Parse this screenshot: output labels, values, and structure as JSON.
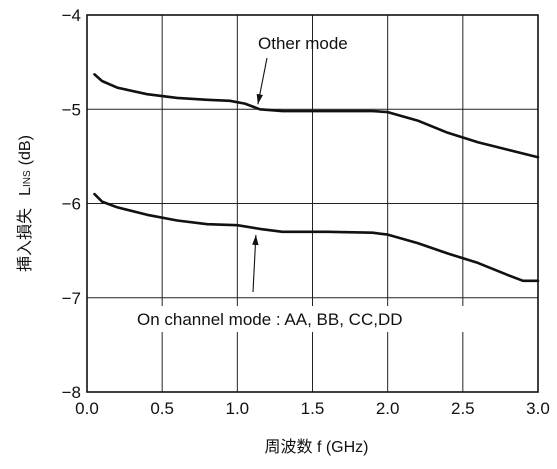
{
  "chart_data": {
    "type": "line",
    "title": "",
    "xlabel": "周波数  f (GHz)",
    "ylabel_main": "挿入損失",
    "ylabel_symbol": "L",
    "ylabel_subscript": "INS",
    "ylabel_unit": "(dB)",
    "xlim": [
      0.0,
      3.0
    ],
    "ylim": [
      -8,
      -4
    ],
    "xticks": [
      "0.0",
      "0.5",
      "1.0",
      "1.5",
      "2.0",
      "2.5",
      "3.0"
    ],
    "yticks": [
      "−4",
      "−5",
      "−6",
      "−7",
      "−8"
    ],
    "grid": true,
    "series": [
      {
        "name": "Other mode",
        "x": [
          0.05,
          0.1,
          0.2,
          0.4,
          0.6,
          0.8,
          0.95,
          1.05,
          1.15,
          1.3,
          1.6,
          1.9,
          2.0,
          2.2,
          2.4,
          2.6,
          2.8,
          3.0
        ],
        "y": [
          -4.63,
          -4.7,
          -4.77,
          -4.84,
          -4.88,
          -4.9,
          -4.91,
          -4.94,
          -5.0,
          -5.02,
          -5.02,
          -5.02,
          -5.03,
          -5.12,
          -5.25,
          -5.35,
          -5.43,
          -5.51
        ]
      },
      {
        "name": "On channel mode : AA, BB, CC,DD",
        "x": [
          0.05,
          0.1,
          0.2,
          0.4,
          0.6,
          0.8,
          1.0,
          1.15,
          1.3,
          1.6,
          1.9,
          2.0,
          2.2,
          2.4,
          2.6,
          2.8,
          2.9,
          3.0
        ],
        "y": [
          -5.9,
          -5.98,
          -6.04,
          -6.12,
          -6.18,
          -6.22,
          -6.23,
          -6.27,
          -6.3,
          -6.3,
          -6.31,
          -6.33,
          -6.42,
          -6.53,
          -6.63,
          -6.76,
          -6.82,
          -6.82
        ]
      }
    ],
    "annotations": [
      {
        "text": "Other mode",
        "series": 0,
        "points_to_x": 1.15
      },
      {
        "text": "On channel mode : AA, BB, CC,DD",
        "series": 1,
        "points_to_x": 1.15
      }
    ]
  }
}
